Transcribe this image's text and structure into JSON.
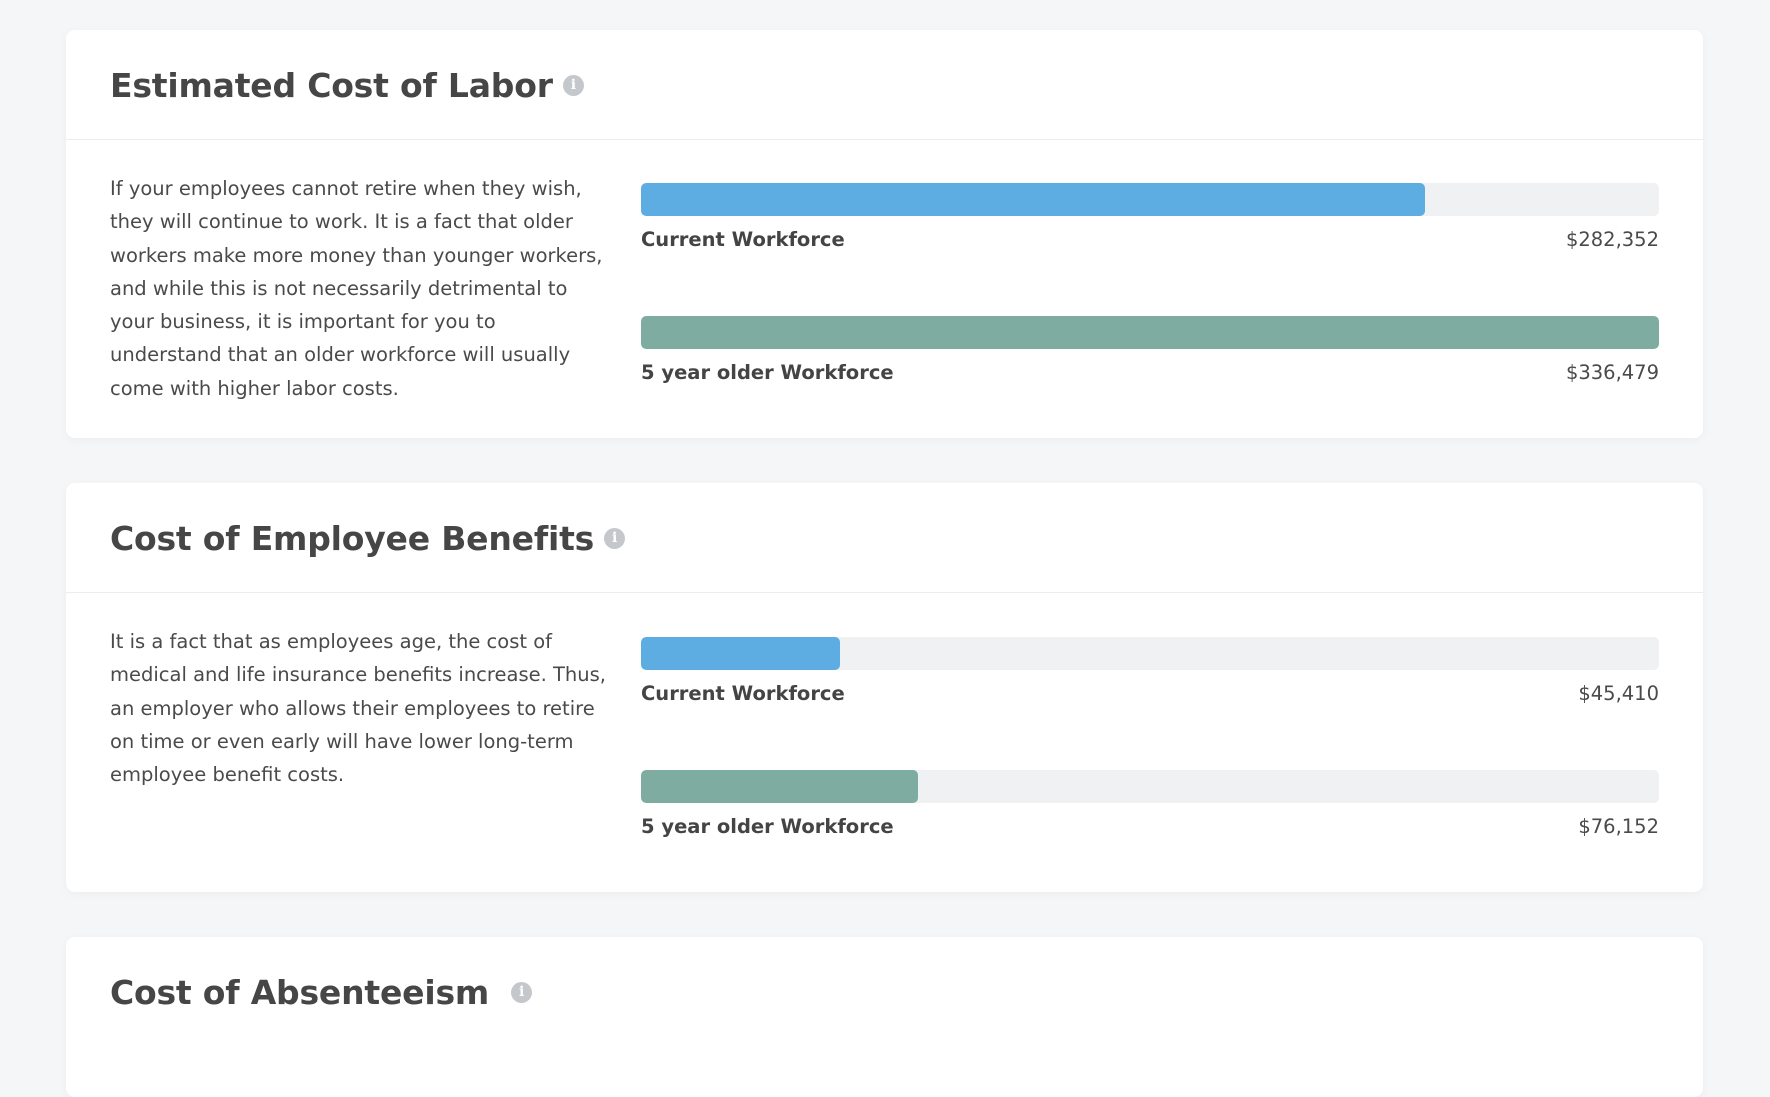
{
  "colors": {
    "current_bar": "#5dade2",
    "older_bar": "#7eaca0",
    "track": "#f0f1f3",
    "page_background": "#f5f6f8"
  },
  "info_icon_glyph": "i",
  "sections": [
    {
      "title": "Estimated Cost of Labor",
      "icon": "info-icon",
      "description": "If your employees cannot retire when they wish, they will continue to work. It is a fact that older workers make more money than younger workers, and while this is not necessarily detrimental to your business, it is important for you to understand that an older workforce will usually come with higher labor costs.",
      "bars": [
        {
          "label": "Current Workforce",
          "value": "$282,352",
          "amount": 282352,
          "fill_pct": 77
        },
        {
          "label": "5 year older Workforce",
          "value": "$336,479",
          "amount": 336479,
          "fill_pct": 100
        }
      ]
    },
    {
      "title": "Cost of Employee Benefits",
      "icon": "info-icon",
      "description": "It is a fact that as employees age, the cost of medical and life insurance benefits increase. Thus, an employer who allows their employees to retire on time or even early will have lower long-term employee benefit costs.",
      "bars": [
        {
          "label": "Current Workforce",
          "value": "$45,410",
          "amount": 45410,
          "fill_pct": 19.5
        },
        {
          "label": "5 year older Workforce",
          "value": "$76,152",
          "amount": 76152,
          "fill_pct": 27.2
        }
      ]
    },
    {
      "title": "Cost of Absenteeism",
      "icon": "info-icon"
    }
  ]
}
